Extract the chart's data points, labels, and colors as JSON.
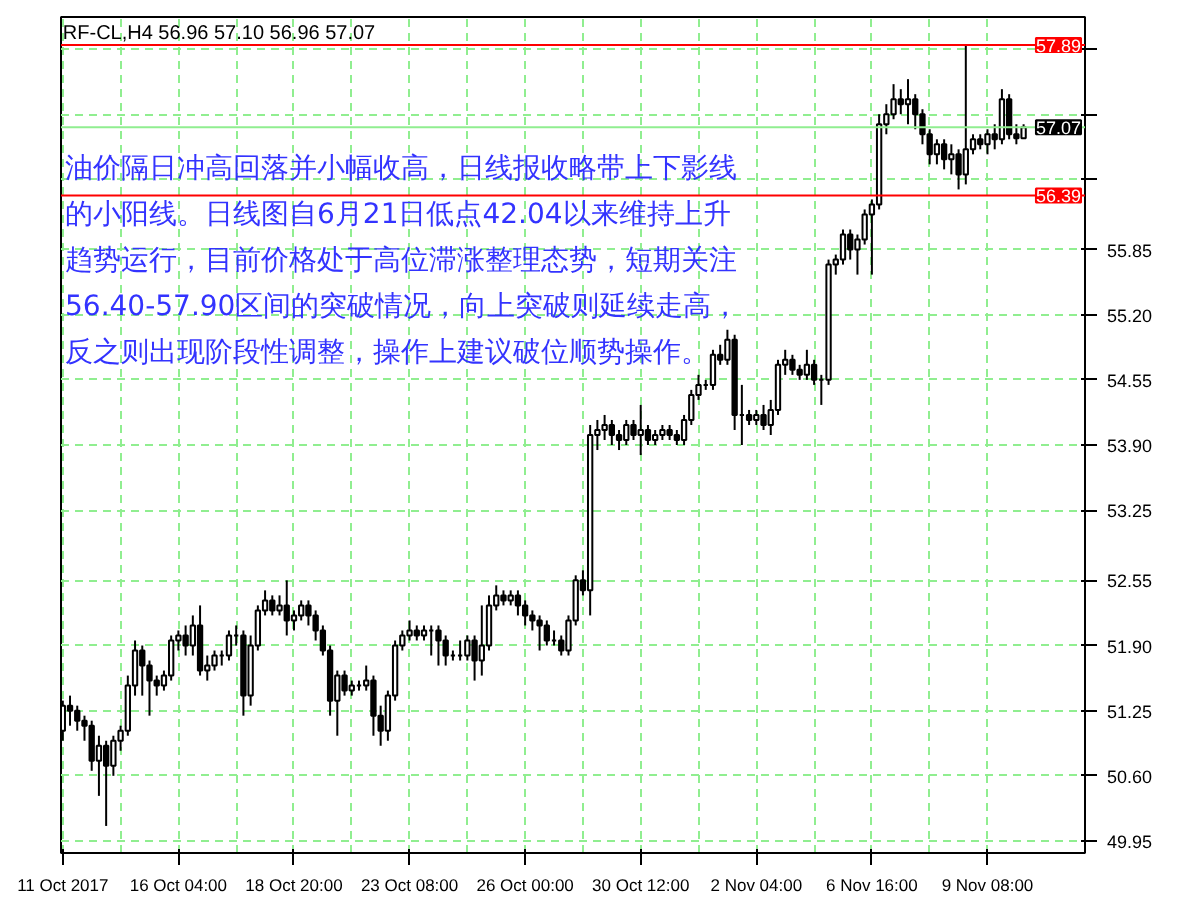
{
  "chart_data": {
    "type": "candlestick",
    "title": "RF-CL,H4  56.96 57.10 56.96 57.07",
    "categories": [
      "11 Oct 2017",
      null,
      null,
      null,
      null,
      null,
      null,
      null,
      null,
      null,
      null,
      null,
      null,
      null,
      null,
      null,
      "16 Oct 04:00",
      null,
      null,
      null,
      null,
      null,
      null,
      null,
      null,
      null,
      null,
      null,
      null,
      null,
      null,
      null,
      "18 Oct 20:00",
      null,
      null,
      null,
      null,
      null,
      null,
      null,
      null,
      null,
      null,
      null,
      null,
      null,
      null,
      null,
      "23 Oct 08:00",
      null,
      null,
      null,
      null,
      null,
      null,
      null,
      null,
      null,
      null,
      null,
      null,
      null,
      null,
      null,
      "26 Oct 00:00",
      null,
      null,
      null,
      null,
      null,
      null,
      null,
      null,
      null,
      null,
      null,
      null,
      null,
      null,
      null,
      "30 Oct 12:00",
      null,
      null,
      null,
      null,
      null,
      null,
      null,
      null,
      null,
      null,
      null,
      null,
      null,
      null,
      null,
      "2 Nov 04:00",
      null,
      null,
      null,
      null,
      null,
      null,
      null,
      null,
      null,
      null,
      null,
      null,
      null,
      null,
      null,
      "6 Nov 16:00",
      null,
      null,
      null,
      null,
      null,
      null,
      null,
      null,
      null,
      null,
      null,
      null,
      null,
      null,
      null,
      "9 Nov 08:00",
      null,
      null,
      null,
      null,
      null
    ],
    "ohlc": [
      [
        51.05,
        51.35,
        50.95,
        51.3
      ],
      [
        51.3,
        51.4,
        51.1,
        51.25
      ],
      [
        51.25,
        51.3,
        51.05,
        51.15
      ],
      [
        51.15,
        51.2,
        50.95,
        51.1
      ],
      [
        51.1,
        51.15,
        50.65,
        50.75
      ],
      [
        50.75,
        51.0,
        50.4,
        50.9
      ],
      [
        50.9,
        50.95,
        50.1,
        50.7
      ],
      [
        50.7,
        51.0,
        50.6,
        50.95
      ],
      [
        50.95,
        51.1,
        50.85,
        51.05
      ],
      [
        51.05,
        51.6,
        51.0,
        51.5
      ],
      [
        51.5,
        51.95,
        51.4,
        51.85
      ],
      [
        51.85,
        51.9,
        51.4,
        51.7
      ],
      [
        51.7,
        51.75,
        51.2,
        51.55
      ],
      [
        51.55,
        51.6,
        51.4,
        51.5
      ],
      [
        51.5,
        51.65,
        51.45,
        51.6
      ],
      [
        51.6,
        52.0,
        51.55,
        51.95
      ],
      [
        51.95,
        52.05,
        51.85,
        52.0
      ],
      [
        52.0,
        52.1,
        51.8,
        51.9
      ],
      [
        51.9,
        52.2,
        51.8,
        52.1
      ],
      [
        52.1,
        52.3,
        51.6,
        51.65
      ],
      [
        51.65,
        51.8,
        51.55,
        51.7
      ],
      [
        51.7,
        51.85,
        51.65,
        51.8
      ],
      [
        51.8,
        51.85,
        51.7,
        51.8
      ],
      [
        51.8,
        52.05,
        51.75,
        52.0
      ],
      [
        52.0,
        52.1,
        51.9,
        52.0
      ],
      [
        52.0,
        52.05,
        51.2,
        51.4
      ],
      [
        51.4,
        52.0,
        51.3,
        51.9
      ],
      [
        51.9,
        52.3,
        51.85,
        52.25
      ],
      [
        52.25,
        52.45,
        52.2,
        52.35
      ],
      [
        52.35,
        52.4,
        52.2,
        52.25
      ],
      [
        52.25,
        52.4,
        52.2,
        52.3
      ],
      [
        52.3,
        52.55,
        52.0,
        52.15
      ],
      [
        52.15,
        52.25,
        52.05,
        52.2
      ],
      [
        52.2,
        52.35,
        52.15,
        52.3
      ],
      [
        52.3,
        52.35,
        52.1,
        52.2
      ],
      [
        52.2,
        52.25,
        51.95,
        52.05
      ],
      [
        52.05,
        52.1,
        51.8,
        51.85
      ],
      [
        51.85,
        51.9,
        51.2,
        51.35
      ],
      [
        51.35,
        51.65,
        51.0,
        51.6
      ],
      [
        51.6,
        51.65,
        51.4,
        51.45
      ],
      [
        51.45,
        51.55,
        51.4,
        51.5
      ],
      [
        51.5,
        51.55,
        51.45,
        51.5
      ],
      [
        51.5,
        51.7,
        51.45,
        51.55
      ],
      [
        51.55,
        51.6,
        51.0,
        51.2
      ],
      [
        51.2,
        51.3,
        50.9,
        51.05
      ],
      [
        51.05,
        51.45,
        50.95,
        51.4
      ],
      [
        51.4,
        51.95,
        51.35,
        51.9
      ],
      [
        51.9,
        52.05,
        51.85,
        52.0
      ],
      [
        52.0,
        52.15,
        51.95,
        52.05
      ],
      [
        52.05,
        52.1,
        51.95,
        52.0
      ],
      [
        52.0,
        52.1,
        51.95,
        52.05
      ],
      [
        52.05,
        52.1,
        51.8,
        52.05
      ],
      [
        52.05,
        52.1,
        51.7,
        51.95
      ],
      [
        51.95,
        52.0,
        51.7,
        51.8
      ],
      [
        51.8,
        51.85,
        51.75,
        51.8
      ],
      [
        51.8,
        51.95,
        51.75,
        51.8
      ],
      [
        51.8,
        52.0,
        51.75,
        51.95
      ],
      [
        51.95,
        52.0,
        51.55,
        51.75
      ],
      [
        51.75,
        52.3,
        51.6,
        51.9
      ],
      [
        51.9,
        52.4,
        51.85,
        52.3
      ],
      [
        52.3,
        52.5,
        52.25,
        52.4
      ],
      [
        52.4,
        52.45,
        52.3,
        52.35
      ],
      [
        52.35,
        52.45,
        52.3,
        52.4
      ],
      [
        52.4,
        52.45,
        52.2,
        52.3
      ],
      [
        52.3,
        52.35,
        52.1,
        52.2
      ],
      [
        52.2,
        52.25,
        52.05,
        52.15
      ],
      [
        52.15,
        52.2,
        51.85,
        52.1
      ],
      [
        52.1,
        52.15,
        51.9,
        51.95
      ],
      [
        51.95,
        52.05,
        51.9,
        51.95
      ],
      [
        51.95,
        52.0,
        51.8,
        51.85
      ],
      [
        51.85,
        52.2,
        51.8,
        52.15
      ],
      [
        52.15,
        52.6,
        52.1,
        52.55
      ],
      [
        52.55,
        52.65,
        52.4,
        52.45
      ],
      [
        52.45,
        54.1,
        52.2,
        54.0
      ],
      [
        54.0,
        54.15,
        53.85,
        54.05
      ],
      [
        54.05,
        54.2,
        53.95,
        54.1
      ],
      [
        54.1,
        54.15,
        53.9,
        54.0
      ],
      [
        54.0,
        54.05,
        53.85,
        53.95
      ],
      [
        53.95,
        54.15,
        53.9,
        54.1
      ],
      [
        54.1,
        54.15,
        53.95,
        54.0
      ],
      [
        54.0,
        54.3,
        53.8,
        54.05
      ],
      [
        54.05,
        54.1,
        53.9,
        53.95
      ],
      [
        53.95,
        54.05,
        53.9,
        54.0
      ],
      [
        54.0,
        54.1,
        53.95,
        54.05
      ],
      [
        54.05,
        54.1,
        53.95,
        54.0
      ],
      [
        54.0,
        54.05,
        53.9,
        53.95
      ],
      [
        53.95,
        54.2,
        53.9,
        54.15
      ],
      [
        54.15,
        54.45,
        54.1,
        54.4
      ],
      [
        54.4,
        54.6,
        54.35,
        54.5
      ],
      [
        54.5,
        54.55,
        54.45,
        54.5
      ],
      [
        54.5,
        54.85,
        54.45,
        54.8
      ],
      [
        54.8,
        54.9,
        54.7,
        54.75
      ],
      [
        54.75,
        55.05,
        54.7,
        54.95
      ],
      [
        54.95,
        55.0,
        54.05,
        54.2
      ],
      [
        54.2,
        54.5,
        53.9,
        54.2
      ],
      [
        54.2,
        54.25,
        54.1,
        54.15
      ],
      [
        54.15,
        54.25,
        54.1,
        54.2
      ],
      [
        54.2,
        54.3,
        54.05,
        54.1
      ],
      [
        54.1,
        54.35,
        54.0,
        54.25
      ],
      [
        54.25,
        54.75,
        54.2,
        54.7
      ],
      [
        54.7,
        54.85,
        54.6,
        54.75
      ],
      [
        54.75,
        54.8,
        54.6,
        54.65
      ],
      [
        54.65,
        54.7,
        54.55,
        54.6
      ],
      [
        54.6,
        54.85,
        54.55,
        54.7
      ],
      [
        54.7,
        54.75,
        54.5,
        54.55
      ],
      [
        54.55,
        54.6,
        54.3,
        54.55
      ],
      [
        54.55,
        55.75,
        54.5,
        55.7
      ],
      [
        55.7,
        55.8,
        55.6,
        55.75
      ],
      [
        55.75,
        56.05,
        55.7,
        56.0
      ],
      [
        56.0,
        56.05,
        55.75,
        55.85
      ],
      [
        55.85,
        56.0,
        55.6,
        55.95
      ],
      [
        55.95,
        56.25,
        55.9,
        56.2
      ],
      [
        56.2,
        56.35,
        55.6,
        56.3
      ],
      [
        56.3,
        57.2,
        56.25,
        57.1
      ],
      [
        57.1,
        57.3,
        57.0,
        57.2
      ],
      [
        57.2,
        57.5,
        57.15,
        57.35
      ],
      [
        57.35,
        57.45,
        57.2,
        57.3
      ],
      [
        57.3,
        57.55,
        57.1,
        57.35
      ],
      [
        57.35,
        57.4,
        57.05,
        57.2
      ],
      [
        57.2,
        57.25,
        56.9,
        57.0
      ],
      [
        57.0,
        57.05,
        56.7,
        56.8
      ],
      [
        56.8,
        56.95,
        56.7,
        56.9
      ],
      [
        56.9,
        56.95,
        56.65,
        56.75
      ],
      [
        56.75,
        56.9,
        56.6,
        56.8
      ],
      [
        56.8,
        56.85,
        56.45,
        56.6
      ],
      [
        56.6,
        57.89,
        56.5,
        56.85
      ],
      [
        56.85,
        57.0,
        56.8,
        56.95
      ],
      [
        56.95,
        57.0,
        56.85,
        56.9
      ],
      [
        56.9,
        57.05,
        56.8,
        57.0
      ],
      [
        57.0,
        57.1,
        56.85,
        56.95
      ],
      [
        56.95,
        57.45,
        56.9,
        57.35
      ],
      [
        57.35,
        57.4,
        56.95,
        57.0
      ],
      [
        57.0,
        57.1,
        56.9,
        56.96
      ],
      [
        56.96,
        57.1,
        56.96,
        57.07
      ]
    ],
    "ylim": [
      49.83,
      58.17
    ],
    "yticks": [
      49.95,
      {
        "value": 50.6,
        "label": "50.60"
      },
      51.25,
      {
        "value": 51.9,
        "label": "51.90"
      },
      52.55,
      53.25,
      {
        "value": 53.9,
        "label": "53.90"
      },
      54.55,
      {
        "value": 55.2,
        "label": "55.20"
      },
      55.85,
      {
        "value": 56.55,
        "label": null
      },
      {
        "value": 57.2,
        "label": null
      },
      {
        "value": 57.85,
        "label": null
      }
    ],
    "grid": true,
    "ref_lines": [
      {
        "axis": "y",
        "value": 57.89,
        "label": "57.89",
        "color": "#ff0000"
      },
      {
        "axis": "y",
        "value": 56.39,
        "label": "56.39",
        "color": "#ff0000"
      },
      {
        "axis": "y",
        "value": 57.07,
        "label": "57.07",
        "color": "#90ee90"
      }
    ],
    "annotations": [
      "油价隔日冲高回落并小幅收高，日线报收略带上下影线",
      "的小阳线。日线图自6月21日低点42.04以来维持上升",
      "趋势运行，目前价格处于高位滞涨整理态势，短期关注",
      "56.40-57.90区间的突破情况，向上突破则延续走高，",
      "反之则出现阶段性调整，操作上建议破位顺势操作。"
    ]
  }
}
